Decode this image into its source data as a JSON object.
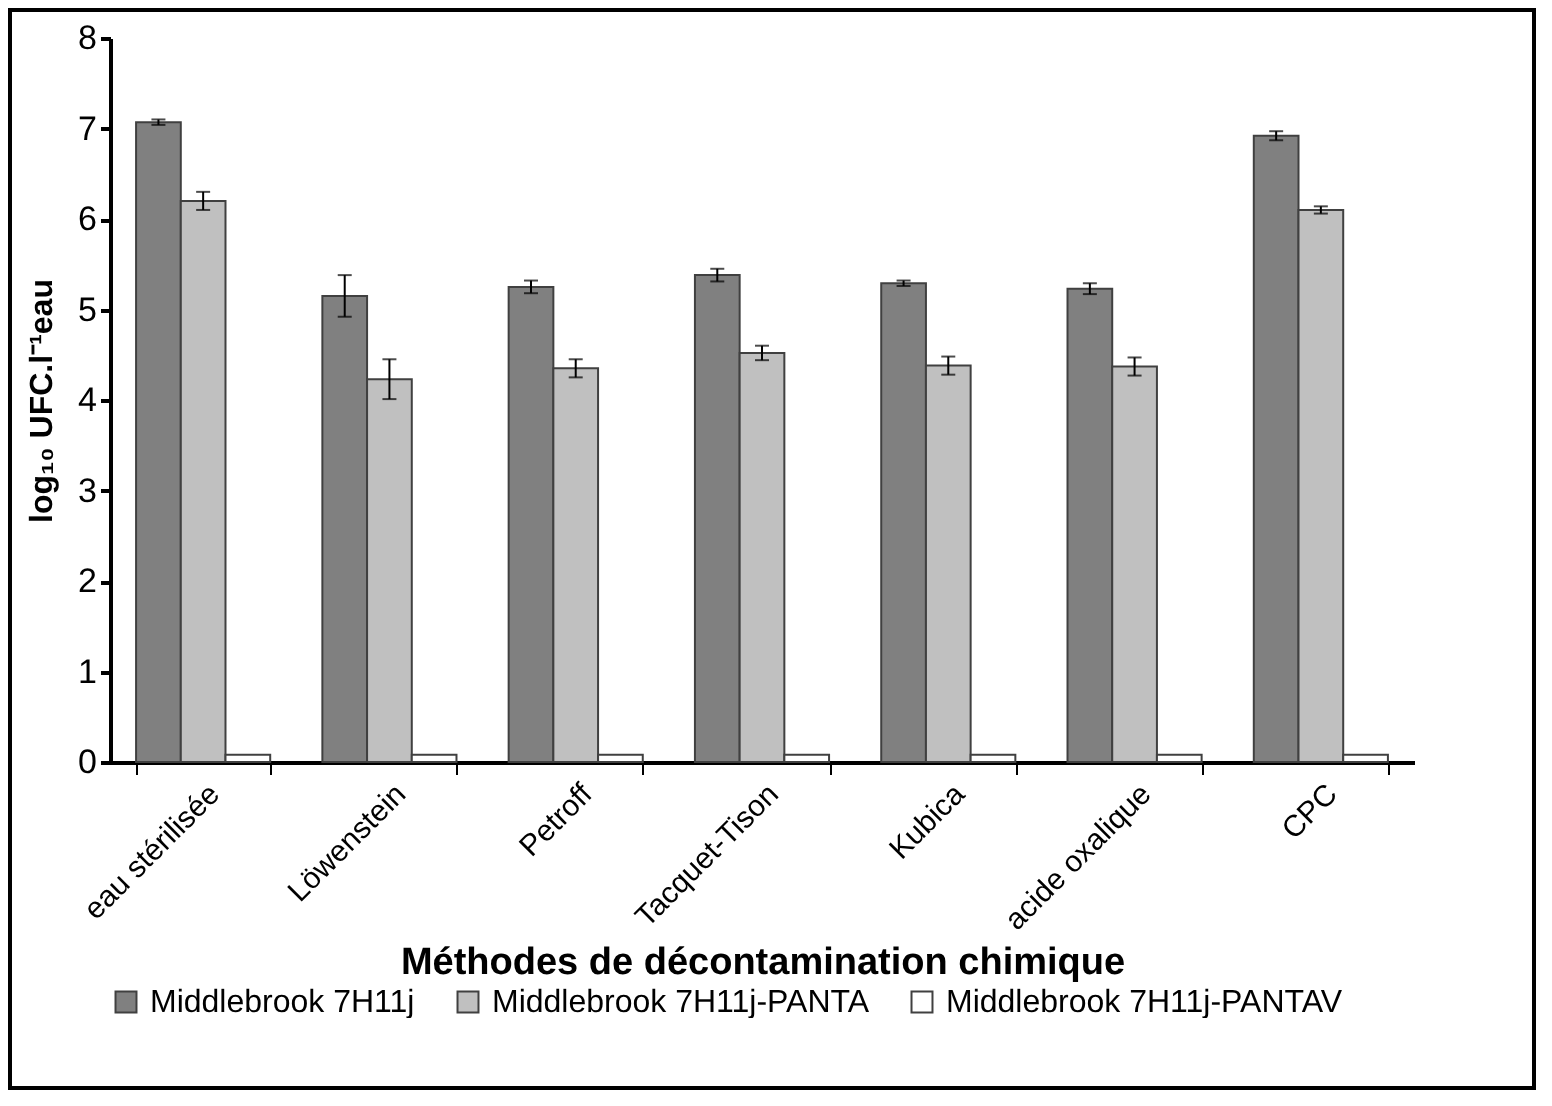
{
  "chart_data": {
    "type": "bar",
    "xlabel": "Méthodes de décontamination chimique",
    "ylabel": "log₁₀ UFC.l⁻¹eau",
    "categories": [
      "eau stérilisée",
      "Löwenstein",
      "Petroff",
      "Tacquet-Tison",
      "Kubica",
      "acide oxalique",
      "CPC"
    ],
    "series": [
      {
        "name": "Middlebrook 7H11j",
        "color": "#808080",
        "values": [
          7.07,
          5.15,
          5.25,
          5.38,
          5.29,
          5.23,
          6.92
        ],
        "errors": [
          0.03,
          0.23,
          0.07,
          0.07,
          0.03,
          0.06,
          0.05
        ]
      },
      {
        "name": "Middlebrook 7H11j-PANTA",
        "color": "#c0c0c0",
        "values": [
          6.2,
          4.23,
          4.35,
          4.52,
          4.38,
          4.37,
          6.1
        ],
        "errors": [
          0.1,
          0.22,
          0.1,
          0.08,
          0.1,
          0.1,
          0.04
        ]
      },
      {
        "name": "Middlebrook 7H11j-PANTAV",
        "color": "#ffffff",
        "values": [
          0.08,
          0.08,
          0.08,
          0.08,
          0.08,
          0.08,
          0.08
        ]
      }
    ],
    "ylim": [
      0,
      8
    ],
    "yticks": [
      0,
      1,
      2,
      3,
      4,
      5,
      6,
      7,
      8
    ],
    "grid": false,
    "legend": "bottom"
  }
}
